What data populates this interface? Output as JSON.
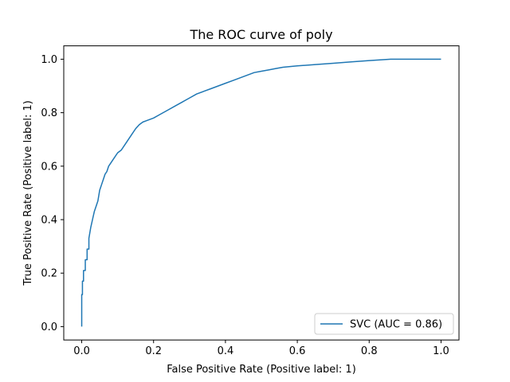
{
  "chart_data": {
    "type": "line",
    "title": "The ROC curve of poly",
    "xlabel": "False Positive Rate (Positive label: 1)",
    "ylabel": "True Positive Rate (Positive label: 1)",
    "xlim": [
      -0.05,
      1.05
    ],
    "ylim": [
      -0.05,
      1.05
    ],
    "xticks": [
      0.0,
      0.2,
      0.4,
      0.6,
      0.8,
      1.0
    ],
    "yticks": [
      0.0,
      0.2,
      0.4,
      0.6,
      0.8,
      1.0
    ],
    "tick_labels": [
      "0.0",
      "0.2",
      "0.4",
      "0.6",
      "0.8",
      "1.0"
    ],
    "grid": false,
    "legend_position": "lower-right",
    "series": [
      {
        "name": "SVC (AUC = 0.86)",
        "color": "#1f77b4",
        "x": [
          0.0,
          0.0,
          0.002,
          0.002,
          0.005,
          0.005,
          0.01,
          0.01,
          0.015,
          0.015,
          0.02,
          0.02,
          0.025,
          0.03,
          0.035,
          0.04,
          0.045,
          0.05,
          0.055,
          0.06,
          0.065,
          0.07,
          0.075,
          0.08,
          0.09,
          0.1,
          0.11,
          0.12,
          0.13,
          0.14,
          0.15,
          0.16,
          0.17,
          0.18,
          0.2,
          0.22,
          0.24,
          0.26,
          0.28,
          0.3,
          0.32,
          0.34,
          0.36,
          0.38,
          0.4,
          0.42,
          0.44,
          0.46,
          0.48,
          0.5,
          0.52,
          0.54,
          0.56,
          0.6,
          0.65,
          0.7,
          0.75,
          0.8,
          0.86,
          0.9,
          1.0
        ],
        "y": [
          0.0,
          0.12,
          0.12,
          0.17,
          0.17,
          0.21,
          0.21,
          0.25,
          0.25,
          0.29,
          0.29,
          0.33,
          0.37,
          0.4,
          0.43,
          0.45,
          0.47,
          0.51,
          0.53,
          0.55,
          0.57,
          0.58,
          0.6,
          0.61,
          0.63,
          0.65,
          0.66,
          0.68,
          0.7,
          0.72,
          0.74,
          0.755,
          0.765,
          0.77,
          0.78,
          0.795,
          0.81,
          0.825,
          0.84,
          0.855,
          0.87,
          0.88,
          0.89,
          0.9,
          0.91,
          0.92,
          0.93,
          0.94,
          0.95,
          0.955,
          0.96,
          0.965,
          0.97,
          0.975,
          0.98,
          0.985,
          0.99,
          0.995,
          1.0,
          1.0,
          1.0
        ]
      }
    ]
  }
}
